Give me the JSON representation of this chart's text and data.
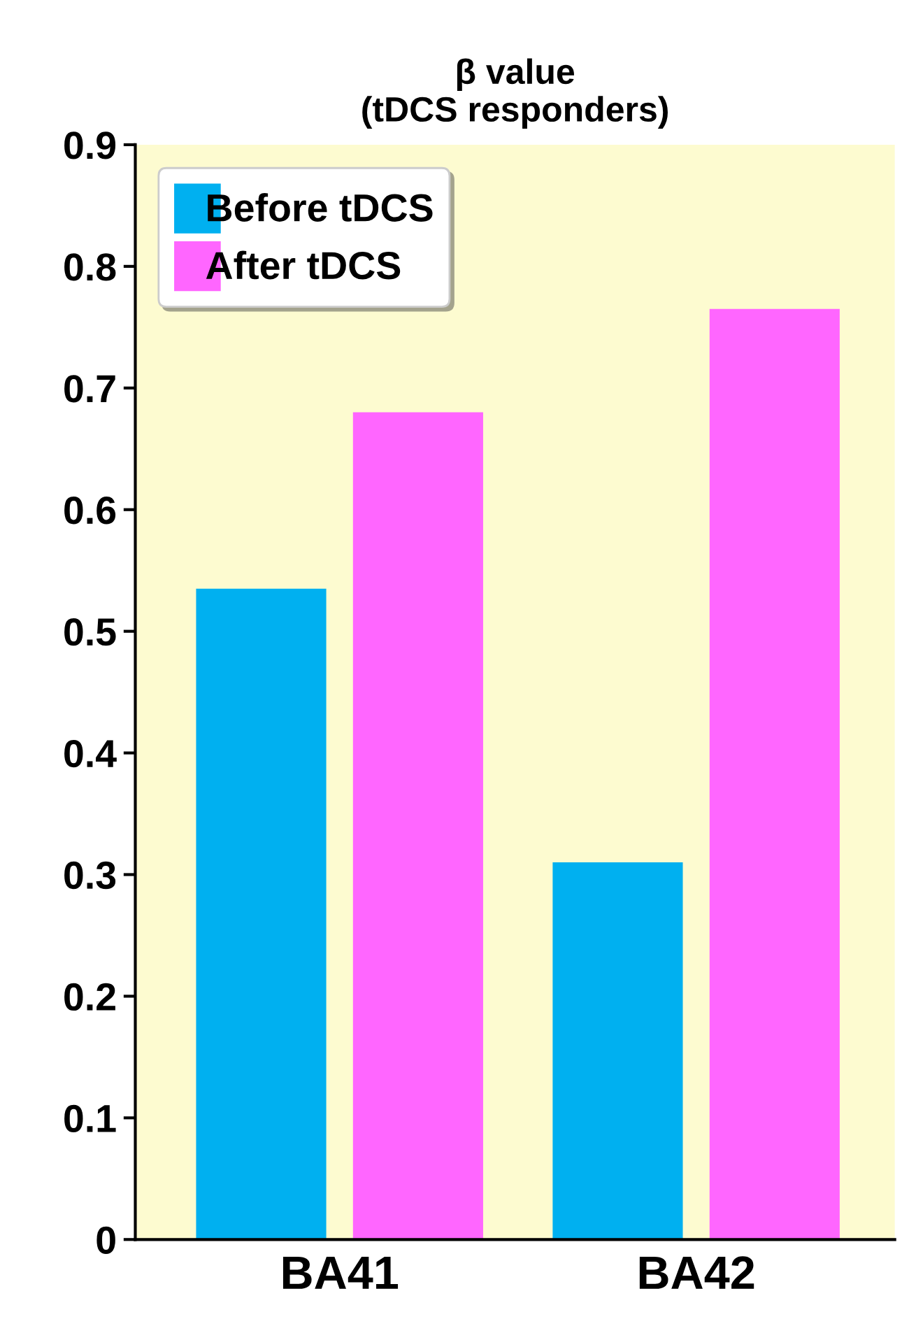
{
  "chart_data": {
    "type": "bar",
    "title": "β value\n(tDCS responders)",
    "categories": [
      "BA41",
      "BA42"
    ],
    "series": [
      {
        "name": "Before tDCS",
        "color": "#00b0f0",
        "values": [
          0.535,
          0.31
        ]
      },
      {
        "name": "After tDCS",
        "color": "#ff66ff",
        "values": [
          0.68,
          0.765
        ]
      }
    ],
    "ylim": [
      0,
      0.9
    ],
    "yticks": [
      0,
      {
        "value": 0.1,
        "label": "0.1"
      },
      {
        "value": 0.2,
        "label": "0.2"
      },
      {
        "value": 0.3,
        "label": "0.3"
      },
      {
        "value": 0.4,
        "label": "0.4"
      },
      {
        "value": 0.5,
        "label": "0.5"
      },
      {
        "value": 0.6,
        "label": "0.6"
      },
      {
        "value": 0.7,
        "label": "0.7"
      },
      {
        "value": 0.8,
        "label": "0.8"
      },
      {
        "value": 0.9,
        "label": "0.9"
      }
    ],
    "grid": false,
    "legend": "top left"
  }
}
